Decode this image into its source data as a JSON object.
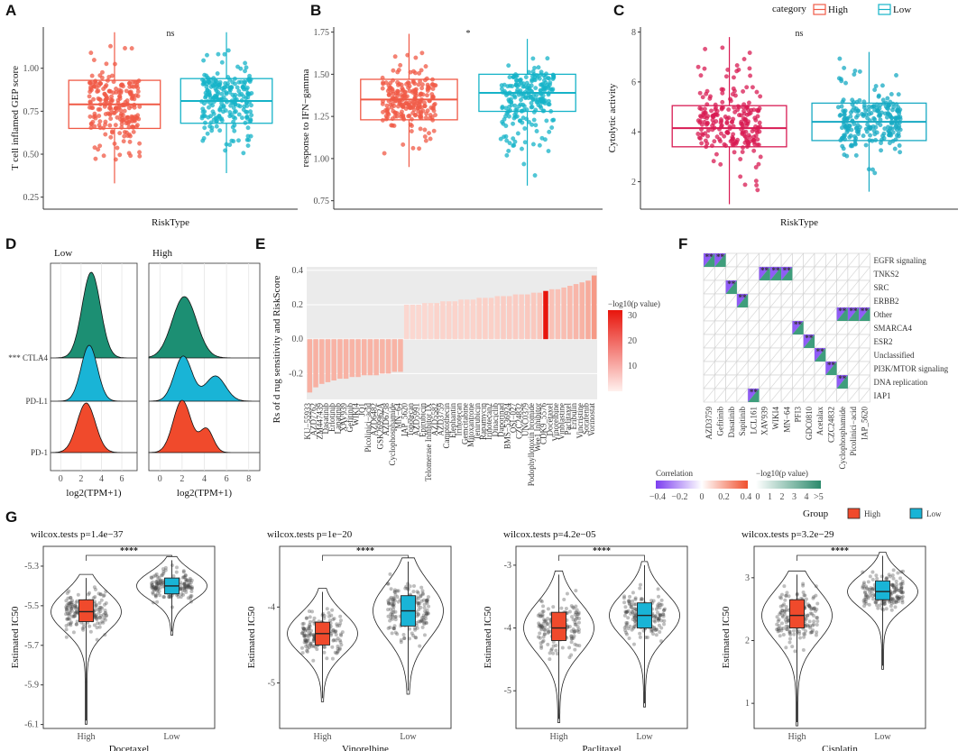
{
  "colors": {
    "high": "#f05a46",
    "low": "#16b3c8",
    "high_c": "#d81b53",
    "low_c": "#17a9c3",
    "green": "#1c8f73",
    "blue": "#19b4d6",
    "red": "#f04a2c",
    "grid": "#ebebeb",
    "panel_bg": "#ebebeb",
    "purple": "#8f5cf6",
    "corr_pos": "#f26e54"
  },
  "panels": {
    "A": "A",
    "B": "B",
    "C": "C",
    "D": "D",
    "E": "E",
    "F": "F",
    "G": "G"
  },
  "chart_data": [
    {
      "id": "A",
      "type": "box",
      "xlabel": "RiskType",
      "ylabel": "T cell inflamed GEP score",
      "ylim": [
        0.18,
        1.24
      ],
      "yticks": [
        0.25,
        0.5,
        0.75,
        1.0
      ],
      "ytick_labels": [
        "0.25",
        "0.50",
        "0.75",
        "1.00"
      ],
      "significance": "ns",
      "boxes": [
        {
          "group": "High",
          "q1": 0.65,
          "median": 0.79,
          "q3": 0.93,
          "min": 0.33,
          "max": 1.21
        },
        {
          "group": "Low",
          "q1": 0.68,
          "median": 0.81,
          "q3": 0.94,
          "min": 0.39,
          "max": 1.21
        }
      ]
    },
    {
      "id": "B",
      "type": "box",
      "xlabel": "",
      "ylabel": "response to IFN−gamma",
      "ylim": [
        0.7,
        1.78
      ],
      "yticks": [
        0.75,
        1.0,
        1.25,
        1.5,
        1.75
      ],
      "ytick_labels": [
        "0.75",
        "1.00",
        "1.25",
        "1.50",
        "1.75"
      ],
      "significance": "*",
      "boxes": [
        {
          "group": "High",
          "q1": 1.23,
          "median": 1.35,
          "q3": 1.47,
          "min": 0.95,
          "max": 1.74
        },
        {
          "group": "Low",
          "q1": 1.28,
          "median": 1.39,
          "q3": 1.5,
          "min": 0.84,
          "max": 1.71
        }
      ]
    },
    {
      "id": "C",
      "type": "box",
      "xlabel": "RiskType",
      "ylabel": "Cytolytic activity",
      "ylim": [
        0.9,
        8.2
      ],
      "yticks": [
        2,
        4,
        6,
        8
      ],
      "ytick_labels": [
        "2",
        "4",
        "6",
        "8"
      ],
      "significance": "ns",
      "legend": {
        "title": "category",
        "items": [
          "High",
          "Low"
        ]
      },
      "boxes": [
        {
          "group": "High",
          "q1": 3.4,
          "median": 4.15,
          "q3": 5.05,
          "min": 1.1,
          "max": 7.8
        },
        {
          "group": "Low",
          "q1": 3.65,
          "median": 4.4,
          "q3": 5.15,
          "min": 1.6,
          "max": 7.2
        }
      ]
    },
    {
      "id": "D",
      "type": "ridgeline",
      "xlabel": "log2(TPM+1)",
      "facets": [
        "Low",
        "High"
      ],
      "rows": [
        "CTLA4",
        "PD-L1",
        "PD-1"
      ],
      "row_prefix": "***",
      "xticks_low": [
        0,
        2,
        4,
        6
      ],
      "xticks_high": [
        0,
        2,
        4,
        6,
        8
      ]
    },
    {
      "id": "E",
      "type": "bar",
      "ylabel": "Rs of d rug sensitivity and RiskScore",
      "ylim": [
        -0.35,
        0.42
      ],
      "yticks": [
        -0.2,
        0.0,
        0.2,
        0.4
      ],
      "ytick_labels": [
        "-0.2",
        "0.0",
        "0.2",
        "0.4"
      ],
      "legend_title": "−log10(p value)",
      "legend_ticks": [
        "30",
        "20",
        "10"
      ],
      "categories": [
        "KU−55933",
        "AZD7762",
        "ZM447439",
        "Dasatinib",
        "Erlotinib",
        "Lapatinib",
        "XAV939",
        "Gefitinib",
        "WIKI4",
        "JQ1",
        "Picolinici−acid",
        "AZD6482",
        "GSK269962A",
        "AZD6738",
        "Cyclophosphamide",
        "MN−64",
        "IAP_5620",
        "Topotecan",
        "AZD5991",
        "Epirubicin",
        "Telomerase Inhibitor IX",
        "AZD5582",
        "AZD3759",
        "Camptothecin",
        "Elephantin",
        "Irinotecan",
        "Gemcitabine",
        "Mitoxantrone",
        "Tenirubicin",
        "Rapamycin",
        "Irinotecan2",
        "Dinaciclib",
        "Daporinad",
        "BMS−536924",
        "OSI−027",
        "CZC24832",
        "UNC0379",
        "Podophyllotoxin bromide",
        "Wee1 Inhibitor",
        "CDK9_5576",
        "Docetaxel",
        "Vinorelbine",
        "Vinblastine",
        "Paclitaxel",
        "Eribulin",
        "Vincristine",
        "Sorafenib",
        "Vorinostat"
      ],
      "values": [
        -0.31,
        -0.28,
        -0.26,
        -0.25,
        -0.24,
        -0.23,
        -0.23,
        -0.22,
        -0.22,
        -0.21,
        -0.21,
        -0.21,
        -0.2,
        -0.2,
        -0.19,
        -0.19,
        0.2,
        0.2,
        0.2,
        0.21,
        0.21,
        0.21,
        0.22,
        0.22,
        0.22,
        0.23,
        0.23,
        0.23,
        0.24,
        0.24,
        0.24,
        0.25,
        0.25,
        0.25,
        0.26,
        0.26,
        0.26,
        0.27,
        0.27,
        0.28,
        0.29,
        0.29,
        0.3,
        0.31,
        0.32,
        0.33,
        0.34,
        0.37
      ],
      "neglog10p": [
        6,
        6,
        5,
        5,
        5,
        5,
        5,
        4,
        4,
        4,
        4,
        4,
        4,
        4,
        4,
        4,
        4,
        4,
        4,
        4,
        4,
        5,
        5,
        5,
        5,
        5,
        5,
        5,
        6,
        6,
        6,
        6,
        7,
        7,
        7,
        7,
        8,
        8,
        9,
        30,
        10,
        10,
        11,
        12,
        13,
        14,
        16,
        21
      ]
    },
    {
      "id": "F",
      "type": "heatmap",
      "xlabels": [
        "AZD3759",
        "Gefitinib",
        "Dasatinib",
        "Sapitinib",
        "LCL161",
        "XAV939",
        "WIKI4",
        "MN−64",
        "PFI3",
        "GDC0810",
        "Acetalax",
        "CZC24832",
        "Cyclophosphamide",
        "Picolinici−acid",
        "IAP_5620"
      ],
      "ylabels": [
        "EGFR signaling",
        "TNKS2",
        "SRC",
        "ERBB2",
        "Other",
        "SMARCA4",
        "ESR2",
        "Unclassified",
        "PI3K/MTOR signaling",
        "DNA replication",
        "IAP1"
      ],
      "legend_corr_title": "Correlation",
      "legend_corr_ticks": [
        "−0.4",
        "−0.2",
        "0",
        "0.2",
        "0.4"
      ],
      "legend_p_title": "−log10(p value)",
      "legend_p_ticks": [
        "0",
        "1",
        "2",
        "3",
        "4",
        ">5"
      ]
    },
    {
      "id": "G",
      "type": "violin_box",
      "legend": {
        "title": "Group",
        "items": [
          "High",
          "Low"
        ]
      },
      "ylabel": "Estimated IC50",
      "subplots": [
        {
          "drug": "Docetaxel",
          "test": "wilcox.tests p=1.4e−37",
          "sig": "****",
          "ylim": [
            -6.12,
            -5.2
          ],
          "yticks": [
            -5.3,
            -5.5,
            -5.7,
            -5.9,
            -6.1
          ],
          "ytick_labels": [
            "-5.3",
            "-5.5",
            "-5.7",
            "-5.9",
            "-6.1"
          ],
          "boxes": [
            {
              "group": "High",
              "q1": -5.58,
              "median": -5.53,
              "q3": -5.47,
              "min": -6.08,
              "max": -5.36
            },
            {
              "group": "Low",
              "q1": -5.44,
              "median": -5.4,
              "q3": -5.36,
              "min": -5.63,
              "max": -5.27
            }
          ]
        },
        {
          "drug": "Vinorelbine",
          "test": "wilcox.tests p=1e−20",
          "sig": "****",
          "ylim": [
            -5.6,
            -3.2
          ],
          "yticks": [
            -4,
            -5
          ],
          "ytick_labels": [
            "-4",
            "-5"
          ],
          "boxes": [
            {
              "group": "High",
              "q1": -4.5,
              "median": -4.35,
              "q3": -4.2,
              "min": -5.2,
              "max": -3.8
            },
            {
              "group": "Low",
              "q1": -4.25,
              "median": -4.05,
              "q3": -3.85,
              "min": -5.1,
              "max": -3.4
            }
          ]
        },
        {
          "drug": "Paclitaxel",
          "test": "wilcox.tests p=4.2e−05",
          "sig": "****",
          "ylim": [
            -5.6,
            -2.7
          ],
          "yticks": [
            -3,
            -4,
            -5
          ],
          "ytick_labels": [
            "-3",
            "-4",
            "-5"
          ],
          "boxes": [
            {
              "group": "High",
              "q1": -4.2,
              "median": -4.0,
              "q3": -3.75,
              "min": -5.45,
              "max": -3.15
            },
            {
              "group": "Low",
              "q1": -4.0,
              "median": -3.8,
              "q3": -3.6,
              "min": -5.2,
              "max": -3.0
            }
          ]
        },
        {
          "drug": "Cisplatin",
          "test": "wilcox.tests p=3.2e−29",
          "sig": "****",
          "ylim": [
            0.6,
            3.5
          ],
          "yticks": [
            3,
            2,
            1
          ],
          "ytick_labels": [
            "3",
            "2",
            "1"
          ],
          "boxes": [
            {
              "group": "High",
              "q1": 2.2,
              "median": 2.4,
              "q3": 2.65,
              "min": 0.7,
              "max": 3.05
            },
            {
              "group": "Low",
              "q1": 2.65,
              "median": 2.78,
              "q3": 2.95,
              "min": 1.6,
              "max": 3.35
            }
          ]
        }
      ]
    }
  ]
}
